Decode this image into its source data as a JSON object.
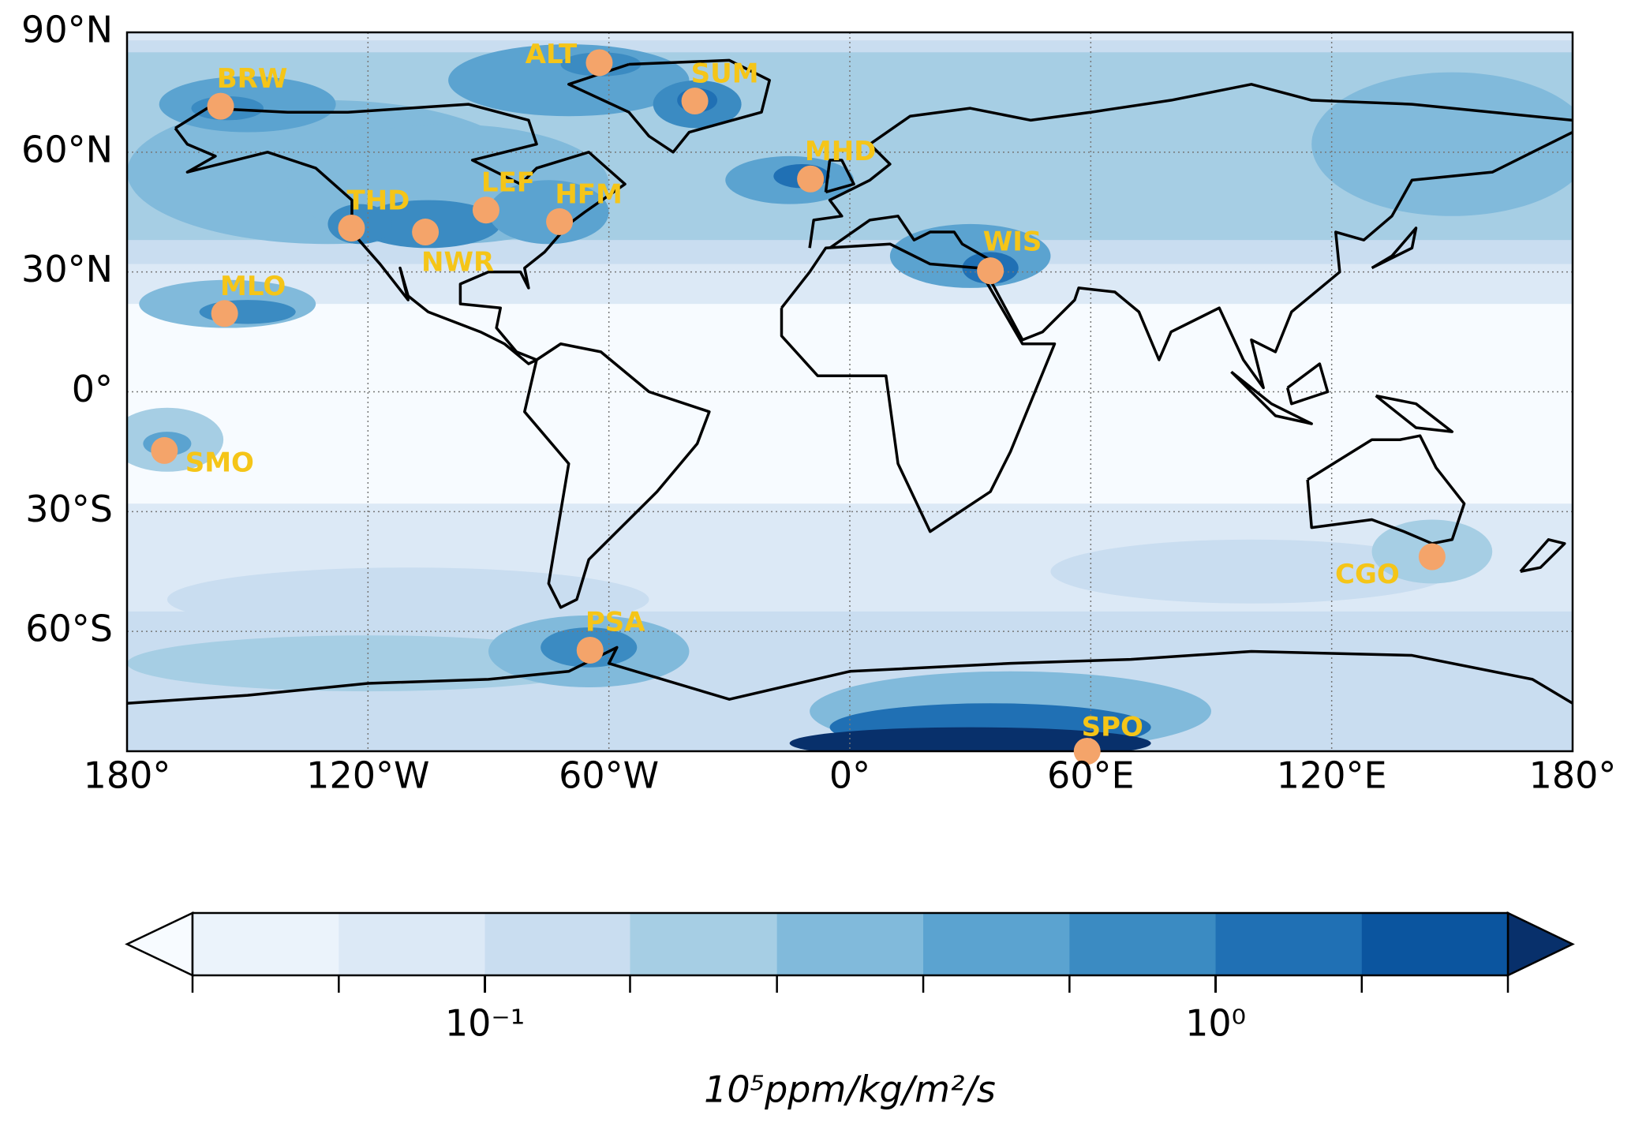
{
  "chart_data": {
    "type": "map",
    "xlim": [
      -180,
      180
    ],
    "ylim": [
      -90,
      90
    ],
    "grid": true,
    "xticks": [
      {
        "value": -180,
        "label": "180°"
      },
      {
        "value": -120,
        "label": "120°W"
      },
      {
        "value": -60,
        "label": "60°W"
      },
      {
        "value": 0,
        "label": "0°"
      },
      {
        "value": 60,
        "label": "60°E"
      },
      {
        "value": 120,
        "label": "120°E"
      },
      {
        "value": 180,
        "label": "180°"
      }
    ],
    "yticks": [
      {
        "value": 90,
        "label": "90°N"
      },
      {
        "value": 60,
        "label": "60°N"
      },
      {
        "value": 30,
        "label": "30°N"
      },
      {
        "value": 0,
        "label": "0°"
      },
      {
        "value": -30,
        "label": "30°S"
      },
      {
        "value": -60,
        "label": "60°S"
      }
    ],
    "points": {
      "names": [
        "BRW",
        "ALT",
        "SUM",
        "MHD",
        "THD",
        "NWR",
        "LEF",
        "HFM",
        "MLO",
        "WIS",
        "SMO",
        "CGO",
        "PSA",
        "SPO"
      ],
      "x": [
        -156.7,
        -62.4,
        -38.6,
        -9.8,
        -124.1,
        -105.7,
        -90.6,
        -72.3,
        -155.7,
        35.0,
        -170.7,
        145.0,
        -64.7,
        59.1
      ],
      "y": [
        71.5,
        82.4,
        72.8,
        53.3,
        41.0,
        40.0,
        45.5,
        42.6,
        19.6,
        30.3,
        -14.7,
        -41.3,
        -64.7,
        -90.0
      ],
      "color": "#f4a46a",
      "label_color": "#f5c518"
    },
    "colorbar": {
      "scale": "log",
      "levels": [
        0.0398,
        0.0631,
        0.1,
        0.158,
        0.251,
        0.398,
        0.631,
        1.0,
        1.585,
        2.512
      ],
      "colors": [
        "#f7fbff",
        "#ebf3fb",
        "#dce9f6",
        "#c9ddf0",
        "#a6cee4",
        "#81badb",
        "#5ba3d0",
        "#3b8bc2",
        "#2070b4",
        "#0b559f",
        "#08306b"
      ],
      "ticks": [
        {
          "value": 0.1,
          "label": "10⁻¹"
        },
        {
          "value": 1.0,
          "label": "10⁰"
        }
      ],
      "label": "10⁵ppm/kg/m²/s"
    }
  }
}
